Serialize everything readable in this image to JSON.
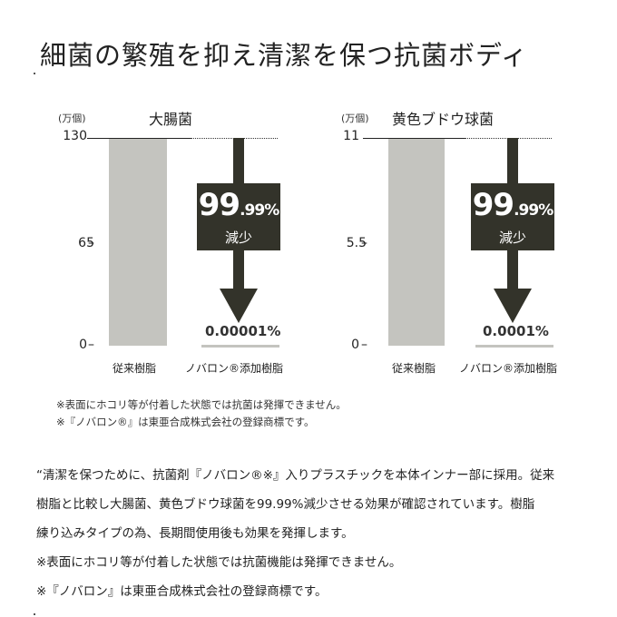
{
  "title": "細菌の繁殖を抑え清潔を保つ抗菌ボディ",
  "charts": [
    {
      "unit": "(万個)",
      "title": "大腸菌",
      "ticks": [
        "130",
        "65",
        "0"
      ],
      "badge_big": "99",
      "badge_small": ".99%",
      "badge_sub": "減少",
      "remaining": "0.00001%",
      "categories": [
        "従来樹脂",
        "ノバロン®添加樹脂"
      ]
    },
    {
      "unit": "(万個)",
      "title": "黄色ブドウ球菌",
      "ticks": [
        "11",
        "5.5",
        "0"
      ],
      "badge_big": "99",
      "badge_small": ".99%",
      "badge_sub": "減少",
      "remaining": "0.0001%",
      "categories": [
        "従来樹脂",
        "ノバロン®添加樹脂"
      ]
    }
  ],
  "chart_data": [
    {
      "type": "bar",
      "title": "大腸菌",
      "ylabel": "(万個)",
      "categories": [
        "従来樹脂",
        "ノバロン®添加樹脂"
      ],
      "values": [
        130,
        1.3e-05
      ],
      "ylim": [
        0,
        130
      ],
      "yticks": [
        0,
        65,
        130
      ],
      "annotations": [
        "99.99% 減少",
        "0.00001%"
      ]
    },
    {
      "type": "bar",
      "title": "黄色ブドウ球菌",
      "ylabel": "(万個)",
      "categories": [
        "従来樹脂",
        "ノバロン®添加樹脂"
      ],
      "values": [
        11,
        1.1e-05
      ],
      "ylim": [
        0,
        11
      ],
      "yticks": [
        0,
        5.5,
        11
      ],
      "annotations": [
        "99.99% 減少",
        "0.0001%"
      ]
    }
  ],
  "notes": [
    "※表面にホコリ等が付着した状態では抗菌は発揮できません。",
    "※『ノバロン®』は東亜合成株式会社の登録商標です。"
  ],
  "paragraph": [
    "“清潔を保つために、抗菌剤『ノバロン®※』入りプラスチックを本体インナー部に採用。従来",
    "樹脂と比較し大腸菌、黄色ブドウ球菌を99.99%減少させる効果が確認されています。樹脂",
    "練り込みタイプの為、長期間使用後も効果を発揮します。",
    "※表面にホコリ等が付着した状態では抗菌機能は発揮できません。",
    "※『ノバロン』は東亜合成株式会社の登録商標です。"
  ],
  "colors": {
    "bar": "#c4c4bf",
    "badge": "#33332a",
    "arrow": "#33332a"
  }
}
